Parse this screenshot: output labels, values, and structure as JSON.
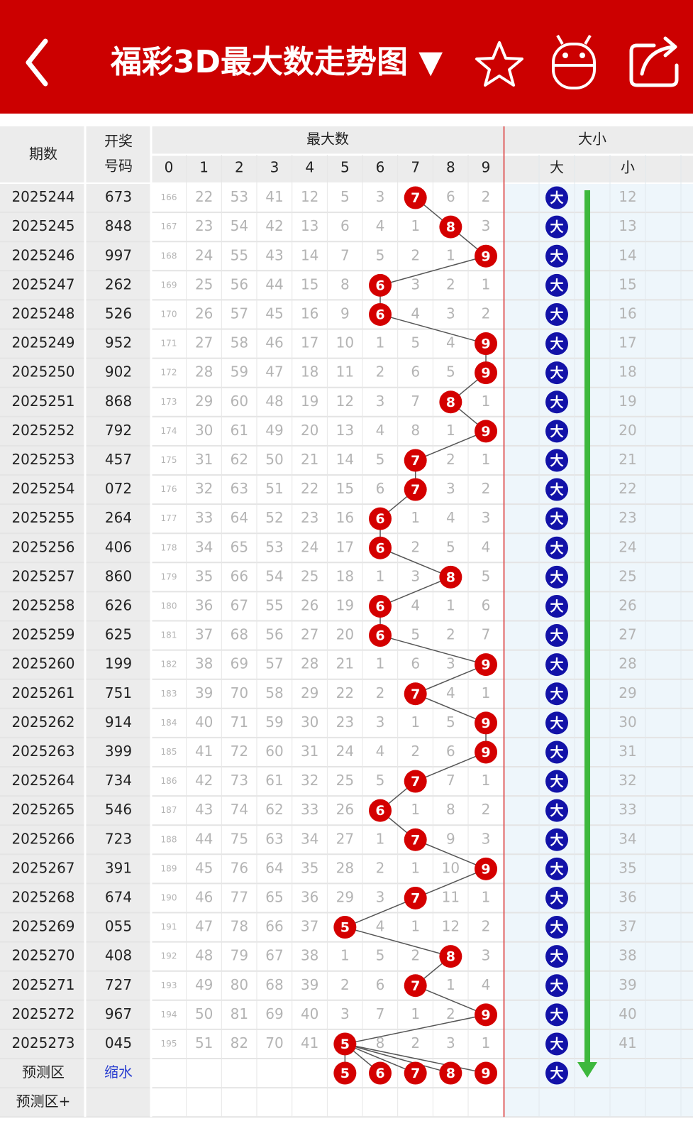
{
  "header": {
    "title": "福彩3D最大数走势图 ▼"
  },
  "table": {
    "columns": {
      "period": "期数",
      "number": [
        "开奖",
        "号码"
      ],
      "group_max": "最大数",
      "digits": [
        0,
        1,
        2,
        3,
        4,
        5,
        6,
        7,
        8,
        9
      ],
      "group_size": "大小",
      "big": "大",
      "small": "小"
    },
    "rows": [
      {
        "period": "2025244",
        "number": "673",
        "cells": [
          166,
          22,
          53,
          41,
          12,
          5,
          3,
          7,
          6,
          2
        ],
        "size": "大",
        "small": 12
      },
      {
        "period": "2025245",
        "number": "848",
        "cells": [
          167,
          23,
          54,
          42,
          13,
          6,
          4,
          1,
          8,
          3
        ],
        "size": "大",
        "small": 13
      },
      {
        "period": "2025246",
        "number": "997",
        "cells": [
          168,
          24,
          55,
          43,
          14,
          7,
          5,
          2,
          1,
          9
        ],
        "size": "大",
        "small": 14
      },
      {
        "period": "2025247",
        "number": "262",
        "cells": [
          169,
          25,
          56,
          44,
          15,
          8,
          6,
          3,
          2,
          1
        ],
        "size": "大",
        "small": 15
      },
      {
        "period": "2025248",
        "number": "526",
        "cells": [
          170,
          26,
          57,
          45,
          16,
          9,
          6,
          4,
          3,
          2
        ],
        "size": "大",
        "small": 16
      },
      {
        "period": "2025249",
        "number": "952",
        "cells": [
          171,
          27,
          58,
          46,
          17,
          10,
          1,
          5,
          4,
          9
        ],
        "size": "大",
        "small": 17
      },
      {
        "period": "2025250",
        "number": "902",
        "cells": [
          172,
          28,
          59,
          47,
          18,
          11,
          2,
          6,
          5,
          9
        ],
        "size": "大",
        "small": 18
      },
      {
        "period": "2025251",
        "number": "868",
        "cells": [
          173,
          29,
          60,
          48,
          19,
          12,
          3,
          7,
          8,
          1
        ],
        "size": "大",
        "small": 19
      },
      {
        "period": "2025252",
        "number": "792",
        "cells": [
          174,
          30,
          61,
          49,
          20,
          13,
          4,
          8,
          1,
          9
        ],
        "size": "大",
        "small": 20
      },
      {
        "period": "2025253",
        "number": "457",
        "cells": [
          175,
          31,
          62,
          50,
          21,
          14,
          5,
          7,
          2,
          1
        ],
        "size": "大",
        "small": 21
      },
      {
        "period": "2025254",
        "number": "072",
        "cells": [
          176,
          32,
          63,
          51,
          22,
          15,
          6,
          7,
          3,
          2
        ],
        "size": "大",
        "small": 22
      },
      {
        "period": "2025255",
        "number": "264",
        "cells": [
          177,
          33,
          64,
          52,
          23,
          16,
          6,
          1,
          4,
          3
        ],
        "size": "大",
        "small": 23
      },
      {
        "period": "2025256",
        "number": "406",
        "cells": [
          178,
          34,
          65,
          53,
          24,
          17,
          6,
          2,
          5,
          4
        ],
        "size": "大",
        "small": 24
      },
      {
        "period": "2025257",
        "number": "860",
        "cells": [
          179,
          35,
          66,
          54,
          25,
          18,
          1,
          3,
          8,
          5
        ],
        "size": "大",
        "small": 25
      },
      {
        "period": "2025258",
        "number": "626",
        "cells": [
          180,
          36,
          67,
          55,
          26,
          19,
          6,
          4,
          1,
          6
        ],
        "size": "大",
        "small": 26
      },
      {
        "period": "2025259",
        "number": "625",
        "cells": [
          181,
          37,
          68,
          56,
          27,
          20,
          6,
          5,
          2,
          7
        ],
        "size": "大",
        "small": 27
      },
      {
        "period": "2025260",
        "number": "199",
        "cells": [
          182,
          38,
          69,
          57,
          28,
          21,
          1,
          6,
          3,
          9
        ],
        "size": "大",
        "small": 28
      },
      {
        "period": "2025261",
        "number": "751",
        "cells": [
          183,
          39,
          70,
          58,
          29,
          22,
          2,
          7,
          4,
          1
        ],
        "size": "大",
        "small": 29
      },
      {
        "period": "2025262",
        "number": "914",
        "cells": [
          184,
          40,
          71,
          59,
          30,
          23,
          3,
          1,
          5,
          9
        ],
        "size": "大",
        "small": 30
      },
      {
        "period": "2025263",
        "number": "399",
        "cells": [
          185,
          41,
          72,
          60,
          31,
          24,
          4,
          2,
          6,
          9
        ],
        "size": "大",
        "small": 31
      },
      {
        "period": "2025264",
        "number": "734",
        "cells": [
          186,
          42,
          73,
          61,
          32,
          25,
          5,
          7,
          7,
          1
        ],
        "size": "大",
        "small": 32
      },
      {
        "period": "2025265",
        "number": "546",
        "cells": [
          187,
          43,
          74,
          62,
          33,
          26,
          6,
          1,
          8,
          2
        ],
        "size": "大",
        "small": 33
      },
      {
        "period": "2025266",
        "number": "723",
        "cells": [
          188,
          44,
          75,
          63,
          34,
          27,
          1,
          7,
          9,
          3
        ],
        "size": "大",
        "small": 34
      },
      {
        "period": "2025267",
        "number": "391",
        "cells": [
          189,
          45,
          76,
          64,
          35,
          28,
          2,
          1,
          10,
          9
        ],
        "size": "大",
        "small": 35
      },
      {
        "period": "2025268",
        "number": "674",
        "cells": [
          190,
          46,
          77,
          65,
          36,
          29,
          3,
          7,
          11,
          1
        ],
        "size": "大",
        "small": 36
      },
      {
        "period": "2025269",
        "number": "055",
        "cells": [
          191,
          47,
          78,
          66,
          37,
          5,
          4,
          1,
          12,
          2
        ],
        "size": "大",
        "small": 37
      },
      {
        "period": "2025270",
        "number": "408",
        "cells": [
          192,
          48,
          79,
          67,
          38,
          1,
          5,
          2,
          8,
          3
        ],
        "size": "大",
        "small": 38
      },
      {
        "period": "2025271",
        "number": "727",
        "cells": [
          193,
          49,
          80,
          68,
          39,
          2,
          6,
          7,
          1,
          4
        ],
        "size": "大",
        "small": 39
      },
      {
        "period": "2025272",
        "number": "967",
        "cells": [
          194,
          50,
          81,
          69,
          40,
          3,
          7,
          1,
          2,
          9
        ],
        "size": "大",
        "small": 40
      },
      {
        "period": "2025273",
        "number": "045",
        "cells": [
          195,
          51,
          82,
          70,
          41,
          5,
          8,
          2,
          3,
          1
        ],
        "size": "大",
        "small": 41
      }
    ],
    "predict": {
      "label": "预测区",
      "action": "缩水",
      "balls": [
        5,
        6,
        7,
        8,
        9
      ],
      "size": "大"
    },
    "predict_plus": {
      "label": "预测区+"
    }
  }
}
